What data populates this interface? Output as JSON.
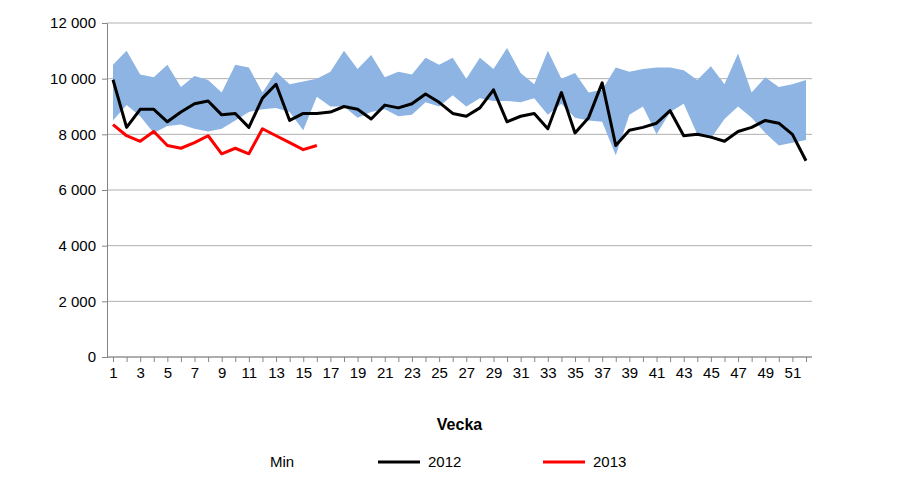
{
  "chart_data": {
    "type": "line",
    "x_label": "Vecka",
    "categories": [
      1,
      null,
      3,
      null,
      5,
      null,
      7,
      null,
      9,
      null,
      11,
      null,
      13,
      null,
      15,
      null,
      17,
      null,
      19,
      null,
      21,
      null,
      23,
      null,
      25,
      null,
      27,
      null,
      29,
      null,
      31,
      null,
      33,
      null,
      35,
      null,
      37,
      null,
      39,
      null,
      41,
      null,
      43,
      null,
      45,
      null,
      47,
      null,
      49,
      null,
      51,
      null
    ],
    "series": [
      {
        "name": "Min",
        "type": "band",
        "color": "#8db4e2",
        "values": [
          8500,
          9050,
          8650,
          8050,
          8300,
          8350,
          8200,
          8100,
          8200,
          8500,
          8800,
          8900,
          8950,
          8800,
          8150,
          9350,
          9000,
          9000,
          8600,
          8800,
          8900,
          8650,
          8700,
          9150,
          9000,
          9400,
          9000,
          9300,
          9200,
          9200,
          9150,
          9300,
          8700,
          9100,
          8600,
          8500,
          8450,
          7250,
          8700,
          9000,
          8000,
          8800,
          9100,
          8000,
          7850,
          8550,
          9000,
          8600,
          8050,
          7600,
          7700,
          7800
        ],
        "upper": [
          10500,
          11000,
          10150,
          10050,
          10500,
          9700,
          10100,
          9950,
          9500,
          10500,
          10400,
          9500,
          10250,
          9800,
          9900,
          10000,
          10250,
          11000,
          10350,
          10850,
          10050,
          10250,
          10150,
          10750,
          10500,
          10750,
          10000,
          10750,
          10350,
          11100,
          10200,
          9800,
          11000,
          10000,
          10200,
          9500,
          9600,
          10400,
          10250,
          10350,
          10400,
          10400,
          10300,
          9950,
          10450,
          9800,
          10900,
          9500,
          10050,
          9700,
          9800,
          9950
        ]
      },
      {
        "name": "2012",
        "type": "line",
        "color": "#000000",
        "values": [
          9960,
          8250,
          8900,
          8900,
          8450,
          8800,
          9100,
          9200,
          8700,
          8750,
          8250,
          9300,
          9800,
          8500,
          8750,
          8750,
          8800,
          9000,
          8900,
          8550,
          9050,
          8950,
          9100,
          9450,
          9150,
          8750,
          8650,
          8950,
          9600,
          8450,
          8650,
          8750,
          8200,
          9500,
          8050,
          8600,
          9850,
          7600,
          8150,
          8250,
          8400,
          8850,
          7950,
          8000,
          7900,
          7750,
          8100,
          8250,
          8500,
          8400,
          8000,
          7050
        ]
      },
      {
        "name": "2013",
        "type": "line",
        "color": "#ff0000",
        "values": [
          8350,
          7950,
          7750,
          8100,
          7600,
          7500,
          7700,
          7950,
          7300,
          7500,
          7300,
          8200,
          7950,
          7700,
          7450,
          7600,
          null,
          null,
          null,
          null,
          null,
          null,
          null,
          null,
          null,
          null,
          null,
          null,
          null,
          null,
          null,
          null,
          null,
          null,
          null,
          null,
          null,
          null,
          null,
          null,
          null,
          null,
          null,
          null,
          null,
          null,
          null,
          null,
          null,
          null,
          null,
          null
        ]
      }
    ],
    "ylim": [
      0,
      12000
    ],
    "yticks": [
      {
        "value": 0,
        "label": "0"
      },
      {
        "value": 2000,
        "label": "2 000"
      },
      {
        "value": 4000,
        "label": "4 000"
      },
      {
        "value": 6000,
        "label": "6 000"
      },
      {
        "value": 8000,
        "label": "8 000"
      },
      {
        "value": 10000,
        "label": "10 000"
      },
      {
        "value": 12000,
        "label": "12 000"
      }
    ],
    "grid": true,
    "legend": "bottom"
  }
}
